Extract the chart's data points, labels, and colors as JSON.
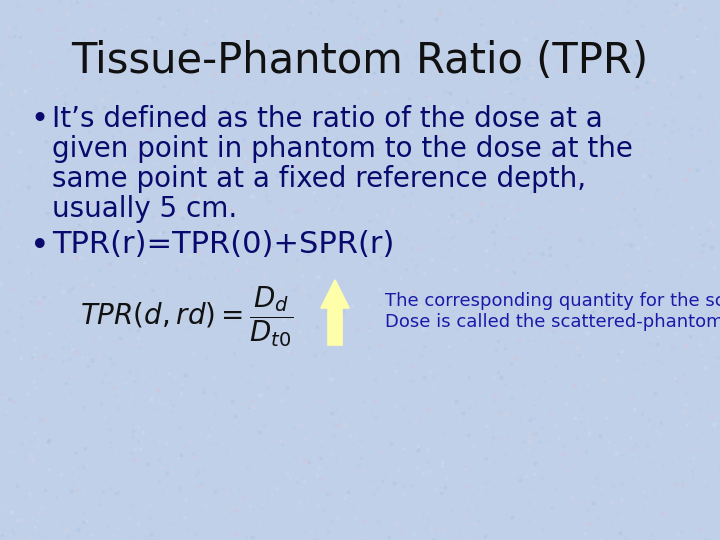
{
  "title": "Tissue-Phantom Ratio (TPR)",
  "title_fontsize": 30,
  "title_color": "#111111",
  "bullet1_lines": [
    "It’s defined as the ratio of the dose at a",
    "given point in phantom to the dose at the",
    "same point at a fixed reference depth,",
    "usually 5 cm."
  ],
  "bullet2": "TPR(r)=TPR(0)+SPR(r)",
  "annotation": "The corresponding quantity for the scattered\nDose is called the scattered-phantom ratio",
  "bg_color": "#c0d0e8",
  "noise_colors": [
    "#a8c0e0",
    "#d0c8e8",
    "#e0c0d0",
    "#b8cce0",
    "#c8daf0",
    "#e0d0e0",
    "#b0c8e8",
    "#d8e0f0"
  ],
  "text_color": "#111111",
  "bullet_color": "#0a0a6e",
  "bullet_fontsize": 20,
  "bullet2_fontsize": 22,
  "annotation_fontsize": 13,
  "annotation_color": "#1a1aaa",
  "arrow_color": "#ffffaa",
  "arrow_edge_color": "#999900",
  "formula_color": "#111111",
  "formula_fontsize": 18
}
